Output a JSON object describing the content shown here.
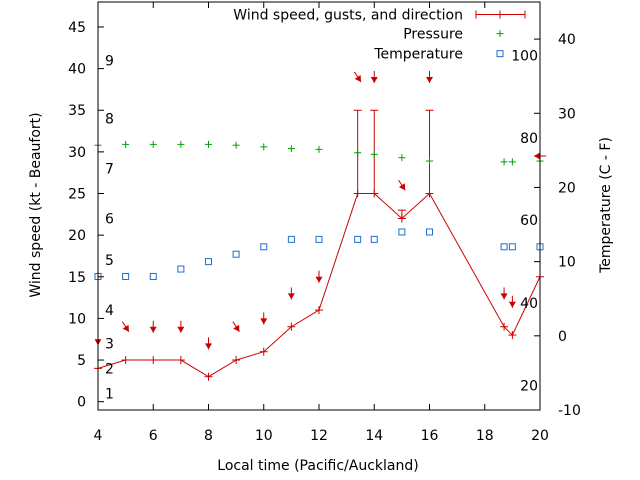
{
  "chart_data": {
    "type": "line",
    "xlabel": "Local time (Pacific/Auckland)",
    "ylabel_left": "Wind speed (kt - Beaufort)",
    "ylabel_right": "Temperature (C - F)",
    "xlim": [
      4,
      20
    ],
    "ylim_left": [
      -1,
      48
    ],
    "ylim_right": [
      -10,
      45
    ],
    "x_ticks": [
      4,
      6,
      8,
      10,
      12,
      14,
      16,
      18,
      20
    ],
    "y_ticks_left": [
      0,
      5,
      10,
      15,
      20,
      25,
      30,
      35,
      40,
      45
    ],
    "y_ticks_right": [
      -10,
      0,
      10,
      20,
      30,
      40
    ],
    "beaufort_labels": [
      {
        "label": "1",
        "kt": 1
      },
      {
        "label": "2",
        "kt": 4
      },
      {
        "label": "3",
        "kt": 7
      },
      {
        "label": "4",
        "kt": 11
      },
      {
        "label": "5",
        "kt": 17
      },
      {
        "label": "6",
        "kt": 22
      },
      {
        "label": "7",
        "kt": 28
      },
      {
        "label": "8",
        "kt": 34
      },
      {
        "label": "9",
        "kt": 41
      }
    ],
    "fahrenheit_labels": [
      {
        "label": "20",
        "c": -6.7
      },
      {
        "label": "40",
        "c": 4.4
      },
      {
        "label": "60",
        "c": 15.6
      },
      {
        "label": "80",
        "c": 26.7
      },
      {
        "label": "100",
        "c": 37.8
      }
    ],
    "legend_position": "top-right",
    "series": [
      {
        "name": "Wind speed, gusts, and direction",
        "color": "#cc0000",
        "x": [
          4,
          5,
          6,
          7,
          8,
          9,
          10,
          11,
          12,
          13.4,
          14,
          15,
          16,
          18.7,
          19,
          20
        ],
        "y": [
          4,
          5,
          5,
          5,
          3,
          5,
          6,
          9,
          11,
          25,
          25,
          22,
          25,
          9,
          8,
          15
        ],
        "gusts": [
          null,
          null,
          null,
          null,
          null,
          null,
          null,
          null,
          null,
          35,
          35,
          23,
          35,
          null,
          null,
          null
        ],
        "direction_arrows": [
          {
            "x": 4,
            "y": 7.5,
            "dir": "down"
          },
          {
            "x": 5,
            "y": 9,
            "dir": "down-right"
          },
          {
            "x": 6,
            "y": 9,
            "dir": "down"
          },
          {
            "x": 7,
            "y": 9,
            "dir": "down"
          },
          {
            "x": 8,
            "y": 7,
            "dir": "down"
          },
          {
            "x": 9,
            "y": 9,
            "dir": "down-right"
          },
          {
            "x": 10,
            "y": 10,
            "dir": "down"
          },
          {
            "x": 11,
            "y": 13,
            "dir": "down"
          },
          {
            "x": 12,
            "y": 15,
            "dir": "down"
          },
          {
            "x": 13.4,
            "y": 39,
            "dir": "down-right"
          },
          {
            "x": 14,
            "y": 39,
            "dir": "down"
          },
          {
            "x": 15,
            "y": 26,
            "dir": "down-right"
          },
          {
            "x": 16,
            "y": 39,
            "dir": "down"
          },
          {
            "x": 18.7,
            "y": 13,
            "dir": "down"
          },
          {
            "x": 19,
            "y": 12,
            "dir": "down"
          },
          {
            "x": 20,
            "y": 29.5,
            "dir": "left"
          }
        ]
      },
      {
        "name": "Pressure",
        "color": "#00a000",
        "axis": "left",
        "x": [
          4,
          5,
          6,
          7,
          8,
          9,
          10,
          11,
          12,
          13.4,
          14,
          15,
          16,
          18.7,
          19,
          20
        ],
        "y": [
          30.8,
          30.9,
          30.9,
          30.9,
          30.9,
          30.8,
          30.6,
          30.4,
          30.3,
          29.9,
          29.7,
          29.3,
          28.9,
          28.8,
          28.8,
          28.9
        ]
      },
      {
        "name": "Temperature",
        "color": "#1f6fd0",
        "axis": "right",
        "x": [
          4,
          5,
          6,
          7,
          8,
          9,
          10,
          11,
          12,
          13.4,
          14,
          15,
          16,
          18.7,
          19,
          20
        ],
        "y": [
          8,
          8,
          8,
          9,
          10,
          11,
          12,
          13,
          13,
          13,
          13,
          14,
          14,
          12,
          12,
          12
        ]
      }
    ]
  }
}
